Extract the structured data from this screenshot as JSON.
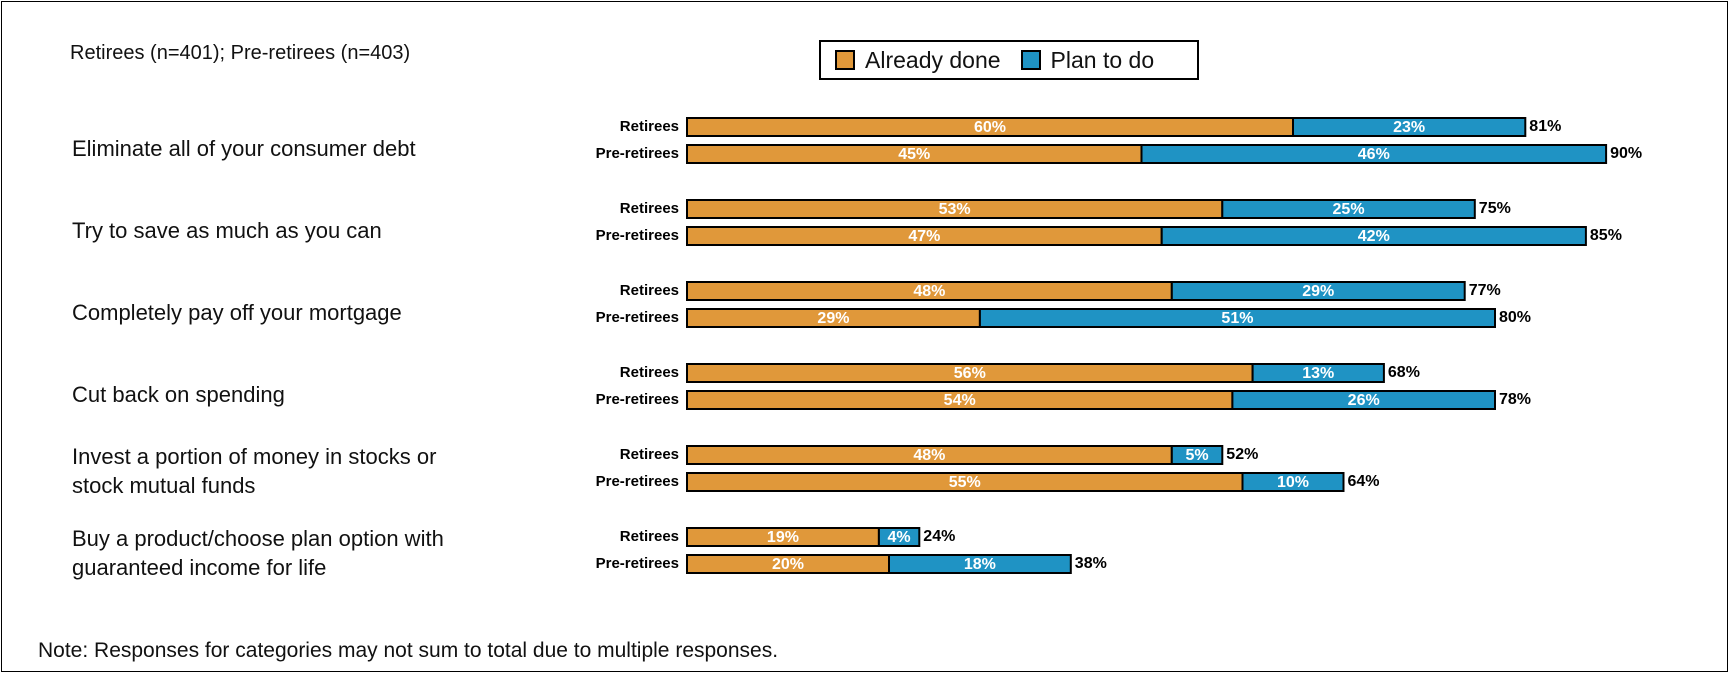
{
  "sample_note": "Retirees (n=401); Pre-retirees (n=403)",
  "footnote": "Note:  Responses for categories may not sum to total due to multiple responses.",
  "colors": {
    "already_done": "#E0983A",
    "plan_to_do": "#1F93C4"
  },
  "chart_data": {
    "type": "bar",
    "orientation": "horizontal",
    "stacked": true,
    "legend": [
      "Already done",
      "Plan to do"
    ],
    "legend_position": "top-center",
    "groups": [
      "Retirees",
      "Pre-retirees"
    ],
    "categories": [
      {
        "label_lines": [
          "Eliminate all of your consumer debt"
        ],
        "rows": [
          {
            "group": "Retirees",
            "already_done": 60,
            "plan_to_do": 23,
            "total": 81,
            "labels": [
              "60%",
              "23%",
              "81%"
            ]
          },
          {
            "group": "Pre-retirees",
            "already_done": 45,
            "plan_to_do": 46,
            "total": 90,
            "labels": [
              "45%",
              "46%",
              "90%"
            ]
          }
        ]
      },
      {
        "label_lines": [
          "Try to save as much as you can"
        ],
        "rows": [
          {
            "group": "Retirees",
            "already_done": 53,
            "plan_to_do": 25,
            "total": 75,
            "labels": [
              "53%",
              "25%",
              "75%"
            ]
          },
          {
            "group": "Pre-retirees",
            "already_done": 47,
            "plan_to_do": 42,
            "total": 85,
            "labels": [
              "47%",
              "42%",
              "85%"
            ]
          }
        ]
      },
      {
        "label_lines": [
          "Completely pay off your mortgage"
        ],
        "rows": [
          {
            "group": "Retirees",
            "already_done": 48,
            "plan_to_do": 29,
            "total": 77,
            "labels": [
              "48%",
              "29%",
              "77%"
            ]
          },
          {
            "group": "Pre-retirees",
            "already_done": 29,
            "plan_to_do": 51,
            "total": 80,
            "labels": [
              "29%",
              "51%",
              "80%"
            ]
          }
        ]
      },
      {
        "label_lines": [
          "Cut back on spending"
        ],
        "rows": [
          {
            "group": "Retirees",
            "already_done": 56,
            "plan_to_do": 13,
            "total": 68,
            "labels": [
              "56%",
              "13%",
              "68%"
            ]
          },
          {
            "group": "Pre-retirees",
            "already_done": 54,
            "plan_to_do": 26,
            "total": 78,
            "labels": [
              "54%",
              "26%",
              "78%"
            ]
          }
        ]
      },
      {
        "label_lines": [
          "Invest a portion of money in stocks or",
          "stock mutual funds"
        ],
        "rows": [
          {
            "group": "Retirees",
            "already_done": 48,
            "plan_to_do": 5,
            "total": 52,
            "labels": [
              "48%",
              "5%",
              "52%"
            ]
          },
          {
            "group": "Pre-retirees",
            "already_done": 55,
            "plan_to_do": 10,
            "total": 64,
            "labels": [
              "55%",
              "10%",
              "64%"
            ]
          }
        ]
      },
      {
        "label_lines": [
          "Buy a product/choose plan option with",
          "guaranteed income for life"
        ],
        "rows": [
          {
            "group": "Retirees",
            "already_done": 19,
            "plan_to_do": 4,
            "total": 24,
            "labels": [
              "19%",
              "4%",
              "24%"
            ]
          },
          {
            "group": "Pre-retirees",
            "already_done": 20,
            "plan_to_do": 18,
            "total": 38,
            "labels": [
              "20%",
              "18%",
              "38%"
            ]
          }
        ]
      }
    ]
  }
}
